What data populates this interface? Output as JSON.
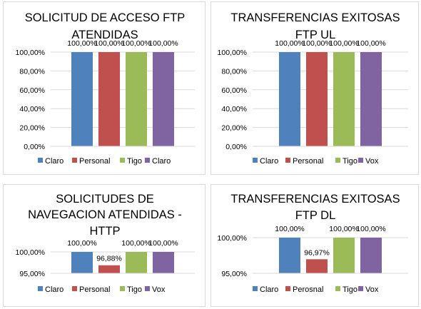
{
  "chart_data": [
    {
      "type": "bar",
      "title_lines": [
        "SOLICITUD DE ACCESO FTP",
        "ATENDIDAS"
      ],
      "categories": [
        "Claro",
        "Personal",
        "Tigo",
        "Claro"
      ],
      "values": [
        100.0,
        100.0,
        100.0,
        100.0
      ],
      "value_labels": [
        "100,00%",
        "100,00%",
        "100,00%",
        "100,00%"
      ],
      "colors": [
        "#4f81bd",
        "#c0504d",
        "#9bbb59",
        "#8064a2"
      ],
      "ylim": [
        0,
        100
      ],
      "yticks": [
        0,
        20,
        40,
        60,
        80,
        100
      ],
      "ytick_labels": [
        "0,00%",
        "20,00%",
        "40,00%",
        "60,00%",
        "80,00%",
        "100,00%"
      ],
      "grid": true,
      "legend": "bottom"
    },
    {
      "type": "bar",
      "title_lines": [
        "TRANSFERENCIAS EXITOSAS",
        "FTP UL"
      ],
      "categories": [
        "Claro",
        "Personal",
        "Tigo",
        "Vox"
      ],
      "values": [
        100.0,
        100.0,
        100.0,
        100.0
      ],
      "value_labels": [
        "100,00%",
        "100,00%",
        "100,00%",
        "100,00%"
      ],
      "colors": [
        "#4f81bd",
        "#c0504d",
        "#9bbb59",
        "#8064a2"
      ],
      "ylim": [
        0,
        100
      ],
      "yticks": [
        0,
        20,
        40,
        60,
        80,
        100
      ],
      "ytick_labels": [
        "0,00%",
        "20,00%",
        "40,00%",
        "60,00%",
        "80,00%",
        "100,00%"
      ],
      "grid": true,
      "legend": "bottom"
    },
    {
      "type": "bar",
      "title_lines": [
        "SOLICITUDES DE",
        "NAVEGACION ATENDIDAS -",
        "HTTP"
      ],
      "categories": [
        "Claro",
        "Personal",
        "Tigo",
        "Vox"
      ],
      "values": [
        100.0,
        96.88,
        100.0,
        100.0
      ],
      "value_labels": [
        "100,00%",
        "96,88%",
        "100,00%",
        "100,00%"
      ],
      "colors": [
        "#4f81bd",
        "#c0504d",
        "#9bbb59",
        "#8064a2"
      ],
      "ylim": [
        95,
        100
      ],
      "yticks": [
        95,
        100
      ],
      "ytick_labels": [
        "95,00%",
        "100,00%"
      ],
      "grid": true,
      "legend": "bottom"
    },
    {
      "type": "bar",
      "title_lines": [
        "TRANSFERENCIAS EXITOSAS",
        "FTP DL"
      ],
      "categories": [
        "Claro",
        "Perosnal",
        "Tigo",
        "Vox"
      ],
      "values": [
        100.0,
        96.97,
        100.0,
        100.0
      ],
      "value_labels": [
        "100,00%",
        "96,97%",
        "100,00%",
        "100,00%"
      ],
      "colors": [
        "#4f81bd",
        "#c0504d",
        "#9bbb59",
        "#8064a2"
      ],
      "ylim": [
        95,
        100
      ],
      "yticks": [
        95,
        100
      ],
      "ytick_labels": [
        "95,00%",
        "100,00%"
      ],
      "grid": true,
      "legend": "bottom"
    }
  ]
}
